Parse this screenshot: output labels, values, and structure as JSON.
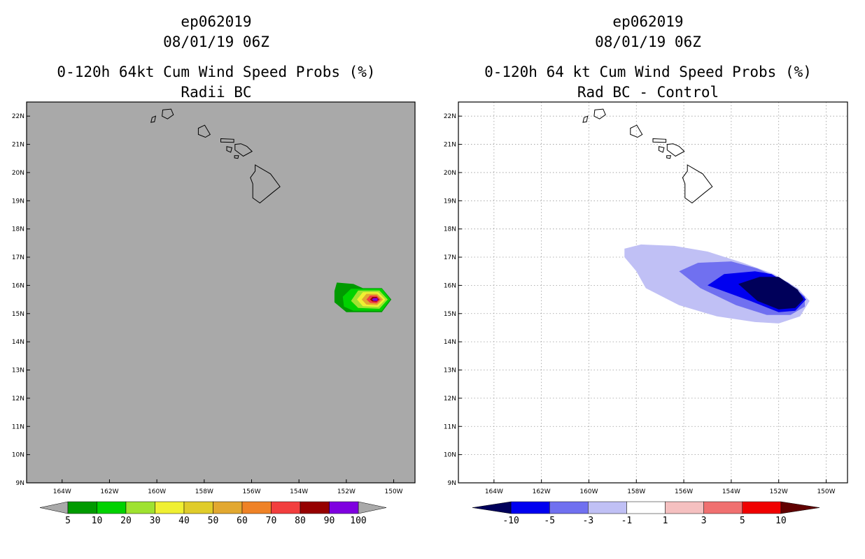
{
  "chart_data": [
    {
      "type": "heatmap",
      "title_lines": [
        "ep062019",
        "08/01/19 06Z",
        "0-120h 64kt Cum Wind Speed Probs (%)",
        "Radii BC"
      ],
      "x_ticks": [
        "164W",
        "162W",
        "160W",
        "158W",
        "156W",
        "154W",
        "152W",
        "150W"
      ],
      "y_ticks": [
        "22N",
        "21N",
        "20N",
        "19N",
        "18N",
        "17N",
        "16N",
        "15N",
        "14N",
        "13N",
        "12N",
        "11N",
        "10N",
        "9N"
      ],
      "xlim": [
        -165.5,
        -149.1
      ],
      "ylim": [
        9,
        22.5
      ],
      "background_color": "#a9a9a9",
      "colorbar": {
        "labels": [
          "5",
          "10",
          "20",
          "30",
          "40",
          "50",
          "60",
          "70",
          "80",
          "90",
          "100"
        ],
        "colors": [
          "#009a00",
          "#00d200",
          "#9fe230",
          "#f0f032",
          "#e0cc2a",
          "#e2a830",
          "#ef8226",
          "#f23e3e",
          "#960000",
          "#7f00e0"
        ]
      },
      "contours": [
        {
          "level": "5",
          "color": "#009a00",
          "points": [
            [
              -152.4,
              16.1
            ],
            [
              -151.7,
              16.05
            ],
            [
              -151.3,
              15.9
            ],
            [
              -150.5,
              15.9
            ],
            [
              -150.1,
              15.5
            ],
            [
              -150.5,
              15.05
            ],
            [
              -152.0,
              15.05
            ],
            [
              -152.5,
              15.4
            ],
            [
              -152.5,
              15.8
            ]
          ]
        },
        {
          "level": "10",
          "color": "#00d200",
          "points": [
            [
              -151.8,
              15.88
            ],
            [
              -150.5,
              15.88
            ],
            [
              -150.15,
              15.5
            ],
            [
              -150.5,
              15.1
            ],
            [
              -151.7,
              15.1
            ],
            [
              -152.1,
              15.25
            ],
            [
              -152.15,
              15.6
            ]
          ]
        },
        {
          "level": "20",
          "color": "#9fe230",
          "points": [
            [
              -151.5,
              15.82
            ],
            [
              -150.6,
              15.82
            ],
            [
              -150.25,
              15.5
            ],
            [
              -150.6,
              15.17
            ],
            [
              -151.5,
              15.2
            ],
            [
              -151.8,
              15.45
            ]
          ]
        },
        {
          "level": "30",
          "color": "#f0f032",
          "points": [
            [
              -151.3,
              15.76
            ],
            [
              -150.65,
              15.76
            ],
            [
              -150.35,
              15.5
            ],
            [
              -150.65,
              15.24
            ],
            [
              -151.3,
              15.26
            ],
            [
              -151.55,
              15.5
            ]
          ]
        },
        {
          "level": "50",
          "color": "#e2a830",
          "points": [
            [
              -151.15,
              15.7
            ],
            [
              -150.7,
              15.7
            ],
            [
              -150.45,
              15.5
            ],
            [
              -150.7,
              15.3
            ],
            [
              -151.15,
              15.32
            ],
            [
              -151.35,
              15.5
            ]
          ]
        },
        {
          "level": "70",
          "color": "#f23e3e",
          "points": [
            [
              -151.0,
              15.64
            ],
            [
              -150.72,
              15.64
            ],
            [
              -150.55,
              15.5
            ],
            [
              -150.72,
              15.36
            ],
            [
              -151.0,
              15.38
            ],
            [
              -151.15,
              15.5
            ]
          ]
        },
        {
          "level": "80",
          "color": "#960000",
          "points": [
            [
              -150.9,
              15.59
            ],
            [
              -150.72,
              15.59
            ],
            [
              -150.62,
              15.5
            ],
            [
              -150.72,
              15.42
            ],
            [
              -150.9,
              15.43
            ],
            [
              -151.0,
              15.5
            ]
          ]
        },
        {
          "level": "90",
          "color": "#7f00e0",
          "points": [
            [
              -150.85,
              15.55
            ],
            [
              -150.68,
              15.55
            ],
            [
              -150.68,
              15.45
            ],
            [
              -150.85,
              15.45
            ],
            [
              -150.92,
              15.5
            ]
          ]
        }
      ]
    },
    {
      "type": "heatmap",
      "title_lines": [
        "ep062019",
        "08/01/19 06Z",
        "0-120h 64 kt Cum Wind Speed Probs (%)",
        "Rad BC - Control"
      ],
      "x_ticks": [
        "164W",
        "162W",
        "160W",
        "158W",
        "156W",
        "154W",
        "152W",
        "150W"
      ],
      "y_ticks": [
        "22N",
        "21N",
        "20N",
        "19N",
        "18N",
        "17N",
        "16N",
        "15N",
        "14N",
        "13N",
        "12N",
        "11N",
        "10N",
        "9N"
      ],
      "xlim": [
        -165.5,
        -149.1
      ],
      "ylim": [
        9,
        22.5
      ],
      "background_color": "#ffffff",
      "grid": true,
      "colorbar": {
        "labels": [
          "-10",
          "-5",
          "-3",
          "-1",
          "1",
          "3",
          "5",
          "10"
        ],
        "colors": [
          "#00005a",
          "#0000f0",
          "#7070f0",
          "#c0c0f5",
          "#ffffff",
          "#f5c0c0",
          "#f07070",
          "#f00000",
          "#600000"
        ]
      },
      "contours": [
        {
          "level": "-1",
          "color": "#c0c0f5",
          "points": [
            [
              -158.5,
              17.3
            ],
            [
              -157.8,
              17.45
            ],
            [
              -156.4,
              17.4
            ],
            [
              -155.0,
              17.2
            ],
            [
              -153.5,
              16.8
            ],
            [
              -152.2,
              16.4
            ],
            [
              -151.2,
              15.9
            ],
            [
              -150.7,
              15.45
            ],
            [
              -151.1,
              14.9
            ],
            [
              -152.0,
              14.65
            ],
            [
              -153.0,
              14.7
            ],
            [
              -154.6,
              14.9
            ],
            [
              -156.2,
              15.3
            ],
            [
              -157.6,
              15.9
            ],
            [
              -158.0,
              16.5
            ],
            [
              -158.5,
              17.0
            ]
          ]
        },
        {
          "level": "-3",
          "color": "#7070f0",
          "points": [
            [
              -156.2,
              16.5
            ],
            [
              -155.4,
              16.8
            ],
            [
              -154.0,
              16.85
            ],
            [
              -152.9,
              16.6
            ],
            [
              -151.6,
              16.1
            ],
            [
              -150.9,
              15.6
            ],
            [
              -150.9,
              15.25
            ],
            [
              -151.5,
              14.95
            ],
            [
              -152.5,
              14.95
            ],
            [
              -153.8,
              15.3
            ],
            [
              -155.3,
              15.9
            ]
          ]
        },
        {
          "level": "-5",
          "color": "#0000f0",
          "points": [
            [
              -155.0,
              16.0
            ],
            [
              -154.3,
              16.4
            ],
            [
              -153.0,
              16.5
            ],
            [
              -152.3,
              16.4
            ],
            [
              -151.3,
              15.9
            ],
            [
              -150.85,
              15.5
            ],
            [
              -151.3,
              15.1
            ],
            [
              -152.0,
              15.05
            ],
            [
              -153.2,
              15.45
            ],
            [
              -154.5,
              15.85
            ]
          ]
        },
        {
          "level": "-10",
          "color": "#00005a",
          "points": [
            [
              -153.7,
              16.05
            ],
            [
              -152.8,
              16.3
            ],
            [
              -152.0,
              16.3
            ],
            [
              -151.2,
              15.85
            ],
            [
              -150.95,
              15.5
            ],
            [
              -151.3,
              15.2
            ],
            [
              -152.0,
              15.15
            ],
            [
              -152.9,
              15.45
            ]
          ]
        }
      ]
    }
  ]
}
